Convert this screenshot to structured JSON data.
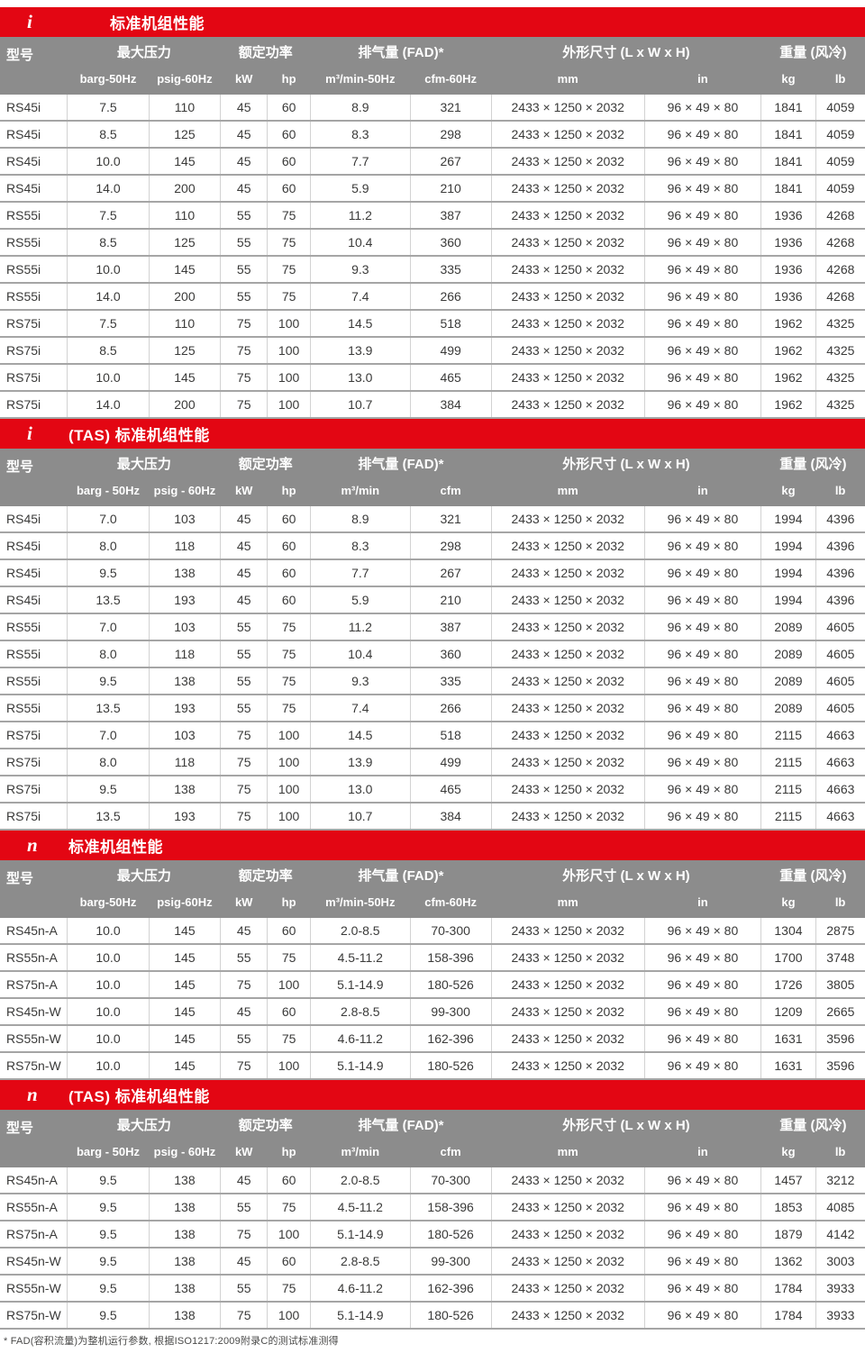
{
  "colors": {
    "brand_red": "#E30613",
    "header_gray": "#8C8C8C"
  },
  "footnote": "* FAD(容积流量)为整机运行参数, 根据ISO1217:2009附录C的测试标准测得",
  "sections": [
    {
      "badge": "i",
      "title": "标准机组性能",
      "columns": {
        "model": "型号",
        "groups": [
          {
            "label": "最大压力",
            "units": [
              "barg-50Hz",
              "psig-60Hz"
            ]
          },
          {
            "label": "额定功率",
            "units": [
              "kW",
              "hp"
            ]
          },
          {
            "label": "排气量 (FAD)*",
            "units": [
              "m³/min-50Hz",
              "cfm-60Hz"
            ]
          },
          {
            "label": "外形尺寸 (L x W x H)",
            "units": [
              "mm",
              "in"
            ]
          },
          {
            "label": "重量 (风冷)",
            "units": [
              "kg",
              "lb"
            ]
          }
        ]
      },
      "rows": [
        [
          "RS45i",
          "7.5",
          "110",
          "45",
          "60",
          "8.9",
          "321",
          "2433 × 1250 × 2032",
          "96 × 49 × 80",
          "1841",
          "4059"
        ],
        [
          "RS45i",
          "8.5",
          "125",
          "45",
          "60",
          "8.3",
          "298",
          "2433 × 1250 × 2032",
          "96 × 49 × 80",
          "1841",
          "4059"
        ],
        [
          "RS45i",
          "10.0",
          "145",
          "45",
          "60",
          "7.7",
          "267",
          "2433 × 1250 × 2032",
          "96 × 49 × 80",
          "1841",
          "4059"
        ],
        [
          "RS45i",
          "14.0",
          "200",
          "45",
          "60",
          "5.9",
          "210",
          "2433 × 1250 × 2032",
          "96 × 49 × 80",
          "1841",
          "4059"
        ],
        [
          "RS55i",
          "7.5",
          "110",
          "55",
          "75",
          "11.2",
          "387",
          "2433 × 1250 × 2032",
          "96 × 49 × 80",
          "1936",
          "4268"
        ],
        [
          "RS55i",
          "8.5",
          "125",
          "55",
          "75",
          "10.4",
          "360",
          "2433 × 1250 × 2032",
          "96 × 49 × 80",
          "1936",
          "4268"
        ],
        [
          "RS55i",
          "10.0",
          "145",
          "55",
          "75",
          "9.3",
          "335",
          "2433 × 1250 × 2032",
          "96 × 49 × 80",
          "1936",
          "4268"
        ],
        [
          "RS55i",
          "14.0",
          "200",
          "55",
          "75",
          "7.4",
          "266",
          "2433 × 1250 × 2032",
          "96 × 49 × 80",
          "1936",
          "4268"
        ],
        [
          "RS75i",
          "7.5",
          "110",
          "75",
          "100",
          "14.5",
          "518",
          "2433 × 1250 × 2032",
          "96 × 49 × 80",
          "1962",
          "4325"
        ],
        [
          "RS75i",
          "8.5",
          "125",
          "75",
          "100",
          "13.9",
          "499",
          "2433 × 1250 × 2032",
          "96 × 49 × 80",
          "1962",
          "4325"
        ],
        [
          "RS75i",
          "10.0",
          "145",
          "75",
          "100",
          "13.0",
          "465",
          "2433 × 1250 × 2032",
          "96 × 49 × 80",
          "1962",
          "4325"
        ],
        [
          "RS75i",
          "14.0",
          "200",
          "75",
          "100",
          "10.7",
          "384",
          "2433 × 1250 × 2032",
          "96 × 49 × 80",
          "1962",
          "4325"
        ]
      ]
    },
    {
      "badge": "i",
      "title": "(TAS) 标准机组性能",
      "columns": {
        "model": "型号",
        "groups": [
          {
            "label": "最大压力",
            "units": [
              "barg - 50Hz",
              "psig - 60Hz"
            ]
          },
          {
            "label": "额定功率",
            "units": [
              "kW",
              "hp"
            ]
          },
          {
            "label": "排气量 (FAD)*",
            "units": [
              "m³/min",
              "cfm"
            ]
          },
          {
            "label": "外形尺寸 (L x W x H)",
            "units": [
              "mm",
              "in"
            ]
          },
          {
            "label": "重量 (风冷)",
            "units": [
              "kg",
              "lb"
            ]
          }
        ]
      },
      "rows": [
        [
          "RS45i",
          "7.0",
          "103",
          "45",
          "60",
          "8.9",
          "321",
          "2433 × 1250 × 2032",
          "96 × 49 × 80",
          "1994",
          "4396"
        ],
        [
          "RS45i",
          "8.0",
          "118",
          "45",
          "60",
          "8.3",
          "298",
          "2433 × 1250 × 2032",
          "96 × 49 × 80",
          "1994",
          "4396"
        ],
        [
          "RS45i",
          "9.5",
          "138",
          "45",
          "60",
          "7.7",
          "267",
          "2433 × 1250 × 2032",
          "96 × 49 × 80",
          "1994",
          "4396"
        ],
        [
          "RS45i",
          "13.5",
          "193",
          "45",
          "60",
          "5.9",
          "210",
          "2433 × 1250 × 2032",
          "96 × 49 × 80",
          "1994",
          "4396"
        ],
        [
          "RS55i",
          "7.0",
          "103",
          "55",
          "75",
          "11.2",
          "387",
          "2433 × 1250 × 2032",
          "96 × 49 × 80",
          "2089",
          "4605"
        ],
        [
          "RS55i",
          "8.0",
          "118",
          "55",
          "75",
          "10.4",
          "360",
          "2433 × 1250 × 2032",
          "96 × 49 × 80",
          "2089",
          "4605"
        ],
        [
          "RS55i",
          "9.5",
          "138",
          "55",
          "75",
          "9.3",
          "335",
          "2433 × 1250 × 2032",
          "96 × 49 × 80",
          "2089",
          "4605"
        ],
        [
          "RS55i",
          "13.5",
          "193",
          "55",
          "75",
          "7.4",
          "266",
          "2433 × 1250 × 2032",
          "96 × 49 × 80",
          "2089",
          "4605"
        ],
        [
          "RS75i",
          "7.0",
          "103",
          "75",
          "100",
          "14.5",
          "518",
          "2433 × 1250 × 2032",
          "96 × 49 × 80",
          "2115",
          "4663"
        ],
        [
          "RS75i",
          "8.0",
          "118",
          "75",
          "100",
          "13.9",
          "499",
          "2433 × 1250 × 2032",
          "96 × 49 × 80",
          "2115",
          "4663"
        ],
        [
          "RS75i",
          "9.5",
          "138",
          "75",
          "100",
          "13.0",
          "465",
          "2433 × 1250 × 2032",
          "96 × 49 × 80",
          "2115",
          "4663"
        ],
        [
          "RS75i",
          "13.5",
          "193",
          "75",
          "100",
          "10.7",
          "384",
          "2433 × 1250 × 2032",
          "96 × 49 × 80",
          "2115",
          "4663"
        ]
      ]
    },
    {
      "badge": "n",
      "title": "标准机组性能",
      "columns": {
        "model": "型号",
        "groups": [
          {
            "label": "最大压力",
            "units": [
              "barg-50Hz",
              "psig-60Hz"
            ]
          },
          {
            "label": "额定功率",
            "units": [
              "kW",
              "hp"
            ]
          },
          {
            "label": "排气量 (FAD)*",
            "units": [
              "m³/min-50Hz",
              "cfm-60Hz"
            ]
          },
          {
            "label": "外形尺寸 (L x W x H)",
            "units": [
              "mm",
              "in"
            ]
          },
          {
            "label": "重量 (风冷)",
            "units": [
              "kg",
              "lb"
            ]
          }
        ]
      },
      "rows": [
        [
          "RS45n-A",
          "10.0",
          "145",
          "45",
          "60",
          "2.0-8.5",
          "70-300",
          "2433 × 1250 × 2032",
          "96 × 49 × 80",
          "1304",
          "2875"
        ],
        [
          "RS55n-A",
          "10.0",
          "145",
          "55",
          "75",
          "4.5-11.2",
          "158-396",
          "2433 × 1250 × 2032",
          "96 × 49 × 80",
          "1700",
          "3748"
        ],
        [
          "RS75n-A",
          "10.0",
          "145",
          "75",
          "100",
          "5.1-14.9",
          "180-526",
          "2433 × 1250 × 2032",
          "96 × 49 × 80",
          "1726",
          "3805"
        ],
        [
          "RS45n-W",
          "10.0",
          "145",
          "45",
          "60",
          "2.8-8.5",
          "99-300",
          "2433 × 1250 × 2032",
          "96 × 49 × 80",
          "1209",
          "2665"
        ],
        [
          "RS55n-W",
          "10.0",
          "145",
          "55",
          "75",
          "4.6-11.2",
          "162-396",
          "2433 × 1250 × 2032",
          "96 × 49 × 80",
          "1631",
          "3596"
        ],
        [
          "RS75n-W",
          "10.0",
          "145",
          "75",
          "100",
          "5.1-14.9",
          "180-526",
          "2433 × 1250 × 2032",
          "96 × 49 × 80",
          "1631",
          "3596"
        ]
      ]
    },
    {
      "badge": "n",
      "title": "(TAS) 标准机组性能",
      "columns": {
        "model": "型号",
        "groups": [
          {
            "label": "最大压力",
            "units": [
              "barg - 50Hz",
              "psig - 60Hz"
            ]
          },
          {
            "label": "额定功率",
            "units": [
              "kW",
              "hp"
            ]
          },
          {
            "label": "排气量 (FAD)*",
            "units": [
              "m³/min",
              "cfm"
            ]
          },
          {
            "label": "外形尺寸 (L x W x H)",
            "units": [
              "mm",
              "in"
            ]
          },
          {
            "label": "重量 (风冷)",
            "units": [
              "kg",
              "lb"
            ]
          }
        ]
      },
      "rows": [
        [
          "RS45n-A",
          "9.5",
          "138",
          "45",
          "60",
          "2.0-8.5",
          "70-300",
          "2433 × 1250 × 2032",
          "96 × 49 × 80",
          "1457",
          "3212"
        ],
        [
          "RS55n-A",
          "9.5",
          "138",
          "55",
          "75",
          "4.5-11.2",
          "158-396",
          "2433 × 1250 × 2032",
          "96 × 49 × 80",
          "1853",
          "4085"
        ],
        [
          "RS75n-A",
          "9.5",
          "138",
          "75",
          "100",
          "5.1-14.9",
          "180-526",
          "2433 × 1250 × 2032",
          "96 × 49 × 80",
          "1879",
          "4142"
        ],
        [
          "RS45n-W",
          "9.5",
          "138",
          "45",
          "60",
          "2.8-8.5",
          "99-300",
          "2433 × 1250 × 2032",
          "96 × 49 × 80",
          "1362",
          "3003"
        ],
        [
          "RS55n-W",
          "9.5",
          "138",
          "55",
          "75",
          "4.6-11.2",
          "162-396",
          "2433 × 1250 × 2032",
          "96 × 49 × 80",
          "1784",
          "3933"
        ],
        [
          "RS75n-W",
          "9.5",
          "138",
          "75",
          "100",
          "5.1-14.9",
          "180-526",
          "2433 × 1250 × 2032",
          "96 × 49 × 80",
          "1784",
          "3933"
        ]
      ]
    }
  ]
}
